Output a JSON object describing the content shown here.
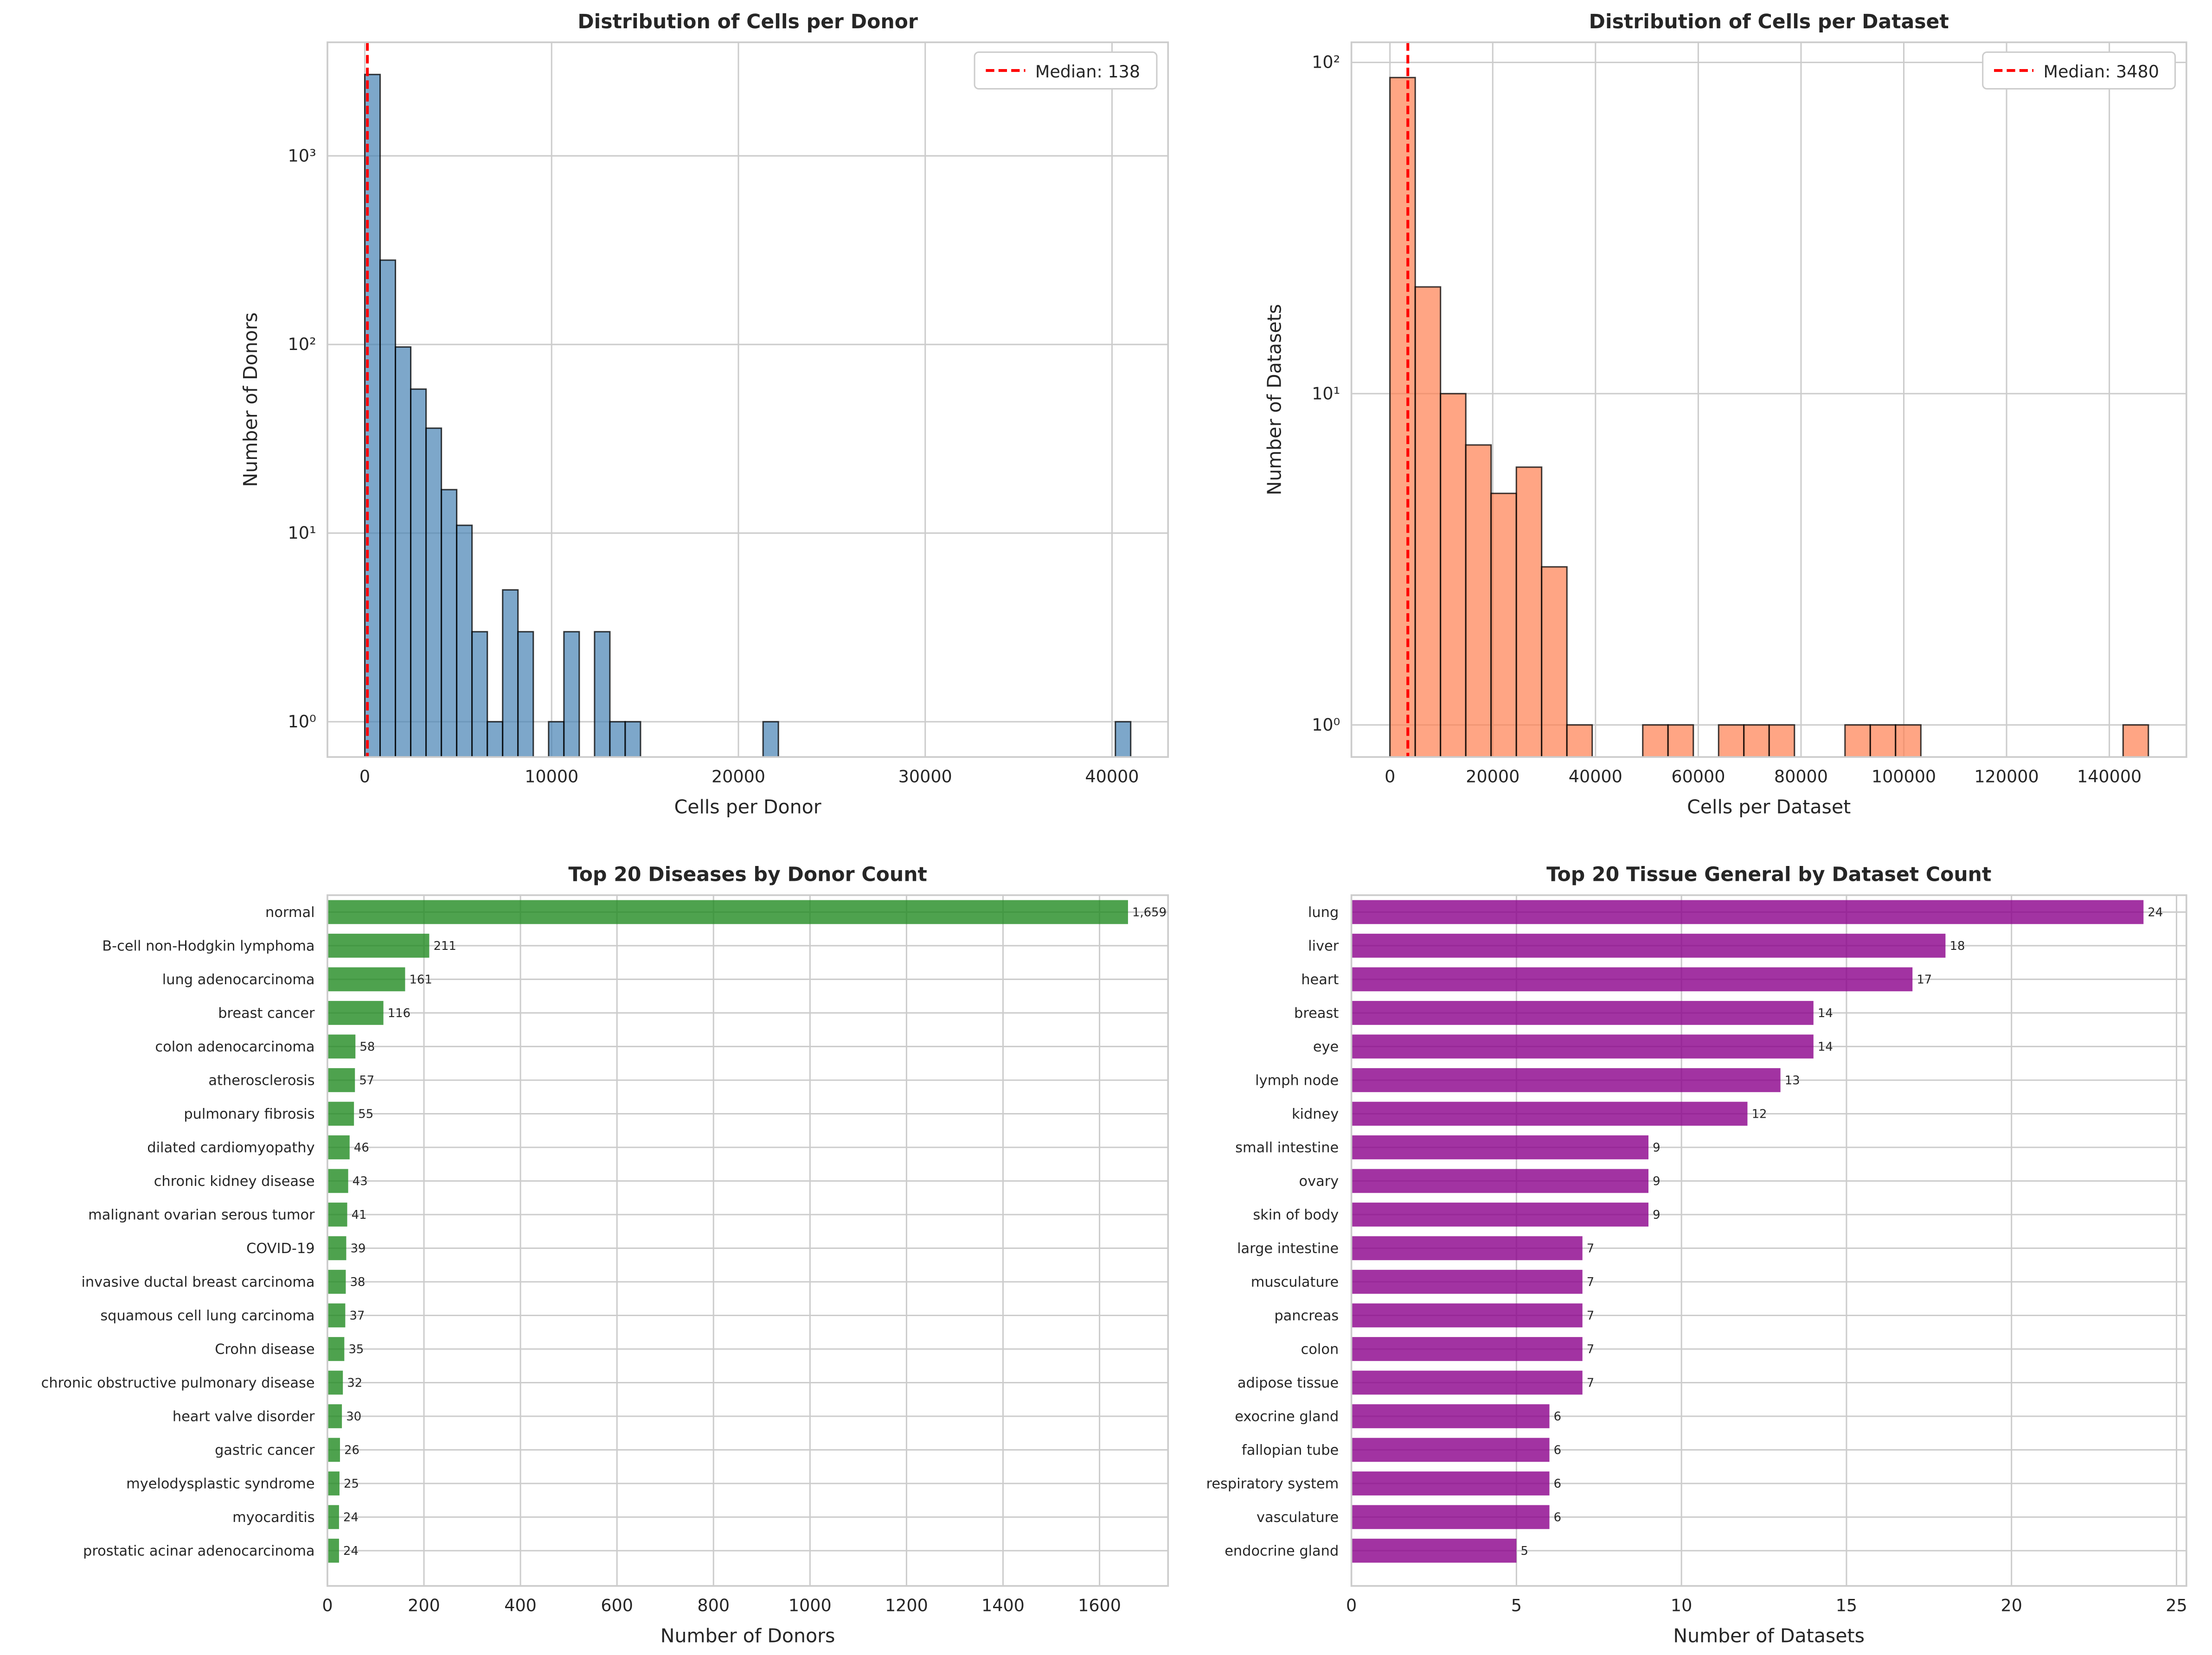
{
  "chart_data": [
    {
      "type": "bar",
      "subtype": "histogram",
      "title": "Distribution of Cells per Donor",
      "xlabel": "Cells per Donor",
      "ylabel": "Number of Donors",
      "yscale": "log",
      "ylim": [
        0.65,
        4000
      ],
      "xlim": [
        -2000,
        43000
      ],
      "bin_width": 820,
      "bin_start": 0,
      "counts": [
        2700,
        280,
        97,
        58,
        36,
        17,
        11,
        3,
        1,
        5,
        3,
        0,
        1,
        3,
        0,
        3,
        1,
        1,
        0,
        0,
        0,
        0,
        0,
        0,
        0,
        0,
        1,
        0,
        0,
        0,
        0,
        0,
        0,
        0,
        0,
        0,
        0,
        0,
        0,
        0,
        0,
        0,
        0,
        0,
        0,
        0,
        0,
        0,
        0,
        1
      ],
      "xticks": [
        0,
        10000,
        20000,
        30000,
        40000
      ],
      "yticks": [
        1,
        10,
        100,
        1000
      ],
      "ytick_labels": [
        "10⁰",
        "10¹",
        "10²",
        "10³"
      ],
      "median": 138,
      "legend": "Median: 138",
      "legend_position": "top-right",
      "color": "#4682b4",
      "median_color": "#ff0000",
      "grid": true
    },
    {
      "type": "bar",
      "subtype": "histogram",
      "title": "Distribution of Cells per Dataset",
      "xlabel": "Cells per Dataset",
      "ylabel": "Number of Datasets",
      "yscale": "log",
      "ylim": [
        0.8,
        115
      ],
      "xlim": [
        -7500,
        155000
      ],
      "bin_width": 4920,
      "bin_start": 0,
      "counts": [
        90,
        21,
        10,
        7,
        5,
        6,
        3,
        1,
        0,
        0,
        1,
        1,
        0,
        1,
        1,
        1,
        0,
        0,
        1,
        1,
        1,
        0,
        0,
        0,
        0,
        0,
        0,
        0,
        0,
        1
      ],
      "xticks": [
        0,
        20000,
        40000,
        60000,
        80000,
        100000,
        120000,
        140000
      ],
      "yticks": [
        1,
        10,
        100
      ],
      "ytick_labels": [
        "10⁰",
        "10¹",
        "10²"
      ],
      "median": 3480,
      "legend": "Median: 3480",
      "legend_position": "top-right",
      "color": "#ff7f50",
      "median_color": "#ff0000",
      "grid": true
    },
    {
      "type": "bar",
      "orientation": "horizontal",
      "title": "Top 20 Diseases by Donor Count",
      "xlabel": "Number of Donors",
      "ylabel": "",
      "xlim": [
        0,
        1742
      ],
      "xticks": [
        0,
        200,
        400,
        600,
        800,
        1000,
        1200,
        1400,
        1600
      ],
      "color": "#228b22",
      "grid": true,
      "categories": [
        "normal",
        "B-cell non-Hodgkin lymphoma",
        "lung adenocarcinoma",
        "breast cancer",
        "colon adenocarcinoma",
        "atherosclerosis",
        "pulmonary fibrosis",
        "dilated cardiomyopathy",
        "chronic kidney disease",
        "malignant ovarian serous tumor",
        "COVID-19",
        "invasive ductal breast carcinoma",
        "squamous cell lung carcinoma",
        "Crohn disease",
        "chronic obstructive pulmonary disease",
        "heart valve disorder",
        "gastric cancer",
        "myelodysplastic syndrome",
        "myocarditis",
        "prostatic acinar adenocarcinoma"
      ],
      "values": [
        1659,
        211,
        161,
        116,
        58,
        57,
        55,
        46,
        43,
        41,
        39,
        38,
        37,
        35,
        32,
        30,
        26,
        25,
        24,
        24
      ],
      "value_labels": [
        "1,659",
        "211",
        "161",
        "116",
        "58",
        "57",
        "55",
        "46",
        "43",
        "41",
        "39",
        "38",
        "37",
        "35",
        "32",
        "30",
        "26",
        "25",
        "24",
        "24"
      ]
    },
    {
      "type": "bar",
      "orientation": "horizontal",
      "title": "Top 20 Tissue General by Dataset Count",
      "xlabel": "Number of Datasets",
      "ylabel": "",
      "xlim": [
        0,
        25.3
      ],
      "xticks": [
        0,
        5,
        10,
        15,
        20,
        25
      ],
      "color": "#8b008b",
      "grid": true,
      "categories": [
        "lung",
        "liver",
        "heart",
        "breast",
        "eye",
        "lymph node",
        "kidney",
        "small intestine",
        "ovary",
        "skin of body",
        "large intestine",
        "musculature",
        "pancreas",
        "colon",
        "adipose tissue",
        "exocrine gland",
        "fallopian tube",
        "respiratory system",
        "vasculature",
        "endocrine gland"
      ],
      "values": [
        24,
        18,
        17,
        14,
        14,
        13,
        12,
        9,
        9,
        9,
        7,
        7,
        7,
        7,
        7,
        6,
        6,
        6,
        6,
        5
      ],
      "value_labels": [
        "24",
        "18",
        "17",
        "14",
        "14",
        "13",
        "12",
        "9",
        "9",
        "9",
        "7",
        "7",
        "7",
        "7",
        "7",
        "6",
        "6",
        "6",
        "6",
        "5"
      ]
    }
  ]
}
